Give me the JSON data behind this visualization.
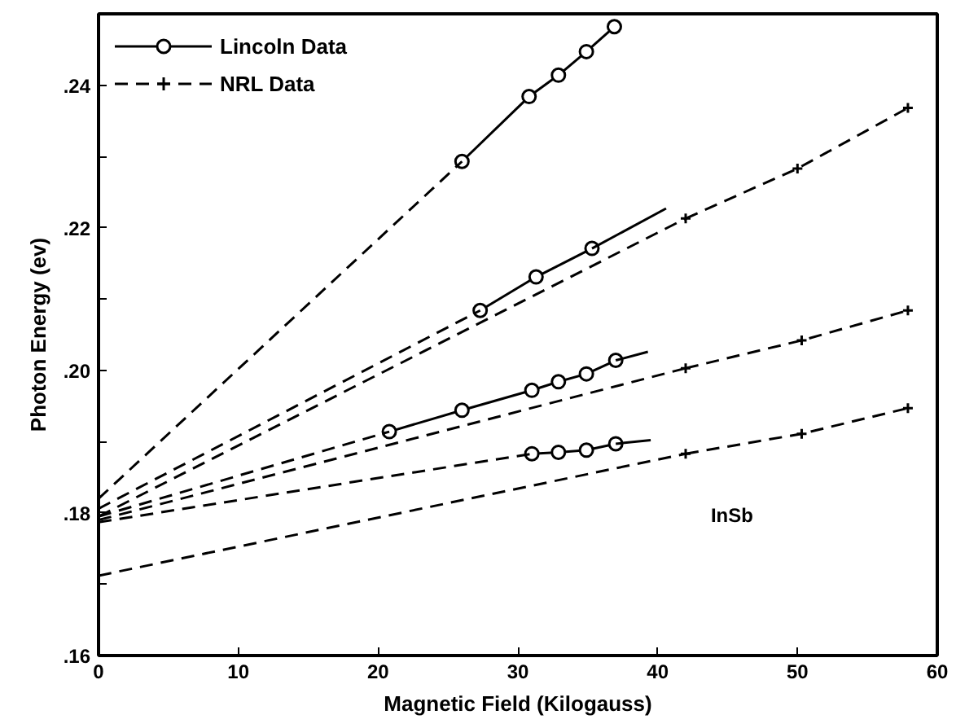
{
  "chart_data": {
    "type": "line",
    "xlabel": "Magnetic Field (Kilogauss)",
    "ylabel": "Photon Energy (ev)",
    "xlim": [
      0,
      60
    ],
    "ylim": [
      0.16,
      0.25
    ],
    "xticks": [
      0,
      10,
      20,
      30,
      40,
      50,
      60
    ],
    "yticks": [
      {
        "value": 0.16,
        "label": ".16"
      },
      {
        "value": 0.17,
        "label": null
      },
      {
        "value": 0.18,
        "label": ".18"
      },
      {
        "value": 0.19,
        "label": null
      },
      {
        "value": 0.2,
        "label": ".20"
      },
      {
        "value": 0.21,
        "label": null
      },
      {
        "value": 0.22,
        "label": ".22"
      },
      {
        "value": 0.23,
        "label": null
      },
      {
        "value": 0.24,
        "label": ".24"
      }
    ],
    "grid": false,
    "legend": "top left",
    "annotations": [
      "InSb"
    ],
    "series": [
      {
        "name": "Lincoln Data",
        "color": "#000000",
        "marker": "circle",
        "line_style": "solid",
        "x": [
          26.0,
          30.8,
          32.9,
          34.9,
          36.9
        ],
        "values": [
          0.2293,
          0.2384,
          0.2414,
          0.2447,
          0.2482
        ]
      },
      {
        "color": "#000000",
        "marker": "none",
        "line_style": "dashed",
        "x": [
          0,
          26.0
        ],
        "values": [
          0.182,
          0.2293
        ]
      },
      {
        "color": "#000000",
        "marker": "circle",
        "line_style": "solid",
        "x": [
          27.3,
          31.3,
          35.3
        ],
        "values": [
          0.2084,
          0.2131,
          0.2171
        ]
      },
      {
        "color": "#000000",
        "marker": "none",
        "line_style": "solid",
        "x": [
          35.3,
          40.6
        ],
        "values": [
          0.2171,
          0.2227
        ]
      },
      {
        "color": "#000000",
        "marker": "none",
        "line_style": "dashed",
        "x": [
          0,
          27.3
        ],
        "values": [
          0.1806,
          0.2084
        ]
      },
      {
        "color": "#000000",
        "marker": "circle",
        "line_style": "solid",
        "x": [
          20.8,
          26.0,
          31.0,
          32.9,
          34.9,
          37.0
        ],
        "values": [
          0.1914,
          0.1944,
          0.1972,
          0.1984,
          0.1995,
          0.2014
        ]
      },
      {
        "color": "#000000",
        "marker": "none",
        "line_style": "solid",
        "x": [
          37.0,
          39.3
        ],
        "values": [
          0.2014,
          0.2026
        ]
      },
      {
        "color": "#000000",
        "marker": "none",
        "line_style": "dashed",
        "x": [
          0,
          20.8
        ],
        "values": [
          0.1795,
          0.1914
        ]
      },
      {
        "color": "#000000",
        "marker": "circle",
        "line_style": "solid",
        "x": [
          31.0,
          32.9,
          34.9,
          37.0
        ],
        "values": [
          0.1883,
          0.1885,
          0.1888,
          0.1897
        ]
      },
      {
        "color": "#000000",
        "marker": "none",
        "line_style": "solid",
        "x": [
          37.0,
          39.5
        ],
        "values": [
          0.1897,
          0.1902
        ]
      },
      {
        "color": "#000000",
        "marker": "none",
        "line_style": "dashed",
        "x": [
          0,
          31.0
        ],
        "values": [
          0.1787,
          0.1883
        ]
      },
      {
        "name": "NRL Data",
        "color": "#000000",
        "marker": "cross",
        "line_style": "dashed",
        "x": [
          42.0,
          50.0,
          57.9
        ],
        "values": [
          0.2213,
          0.2283,
          0.2368
        ]
      },
      {
        "color": "#000000",
        "marker": "none",
        "line_style": "dashed",
        "x": [
          0,
          42.0
        ],
        "values": [
          0.1795,
          0.2213
        ]
      },
      {
        "color": "#000000",
        "marker": "cross",
        "line_style": "dashed",
        "x": [
          42.0,
          50.3,
          57.9
        ],
        "values": [
          0.2003,
          0.2042,
          0.2084
        ]
      },
      {
        "color": "#000000",
        "marker": "none",
        "line_style": "dashed",
        "x": [
          0,
          42.0
        ],
        "values": [
          0.179,
          0.2003
        ]
      },
      {
        "color": "#000000",
        "marker": "cross",
        "line_style": "dashed",
        "x": [
          42.0,
          50.3,
          57.9
        ],
        "values": [
          0.1883,
          0.1911,
          0.1947
        ]
      },
      {
        "color": "#000000",
        "marker": "none",
        "line_style": "dashed",
        "x": [
          0,
          42.0
        ],
        "values": [
          0.1712,
          0.1883
        ]
      }
    ]
  }
}
